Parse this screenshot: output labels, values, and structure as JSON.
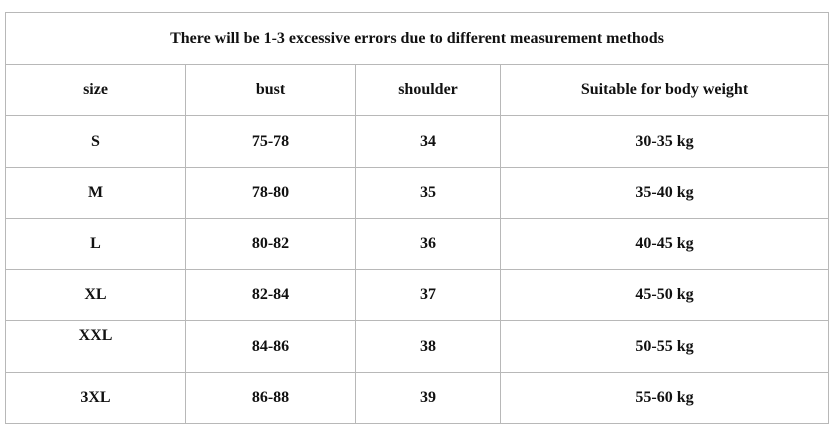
{
  "table": {
    "title": "There will be 1-3 excessive errors due to different measurement methods",
    "header": [
      "size",
      "bust",
      "shoulder",
      "Suitable for body weight"
    ],
    "rows": [
      [
        "S",
        "75-78",
        "34",
        "30-35 kg"
      ],
      [
        "M",
        "78-80",
        "35",
        "35-40 kg"
      ],
      [
        "L",
        "80-82",
        "36",
        "40-45 kg"
      ],
      [
        "XL",
        "82-84",
        "37",
        "45-50 kg"
      ],
      [
        "XXL",
        "84-86",
        "38",
        "50-55 kg"
      ],
      [
        "3XL",
        "86-88",
        "39",
        "55-60 kg"
      ]
    ]
  }
}
